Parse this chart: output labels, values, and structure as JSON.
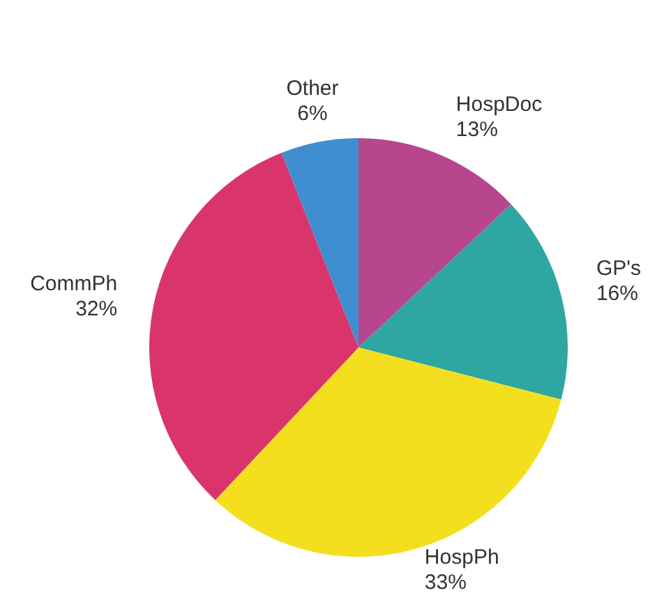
{
  "chart_data": {
    "type": "pie",
    "categories": [
      "HospDoc",
      "GP's",
      "HospPh",
      "CommPh",
      "Other"
    ],
    "values": [
      13,
      16,
      33,
      32,
      6
    ],
    "value_labels": [
      "13%",
      "16%",
      "33%",
      "32%",
      "6%"
    ],
    "colors": [
      "#b8468e",
      "#2ea6a2",
      "#f3df1e",
      "#d9356c",
      "#3f8fd0"
    ],
    "legend": false
  }
}
